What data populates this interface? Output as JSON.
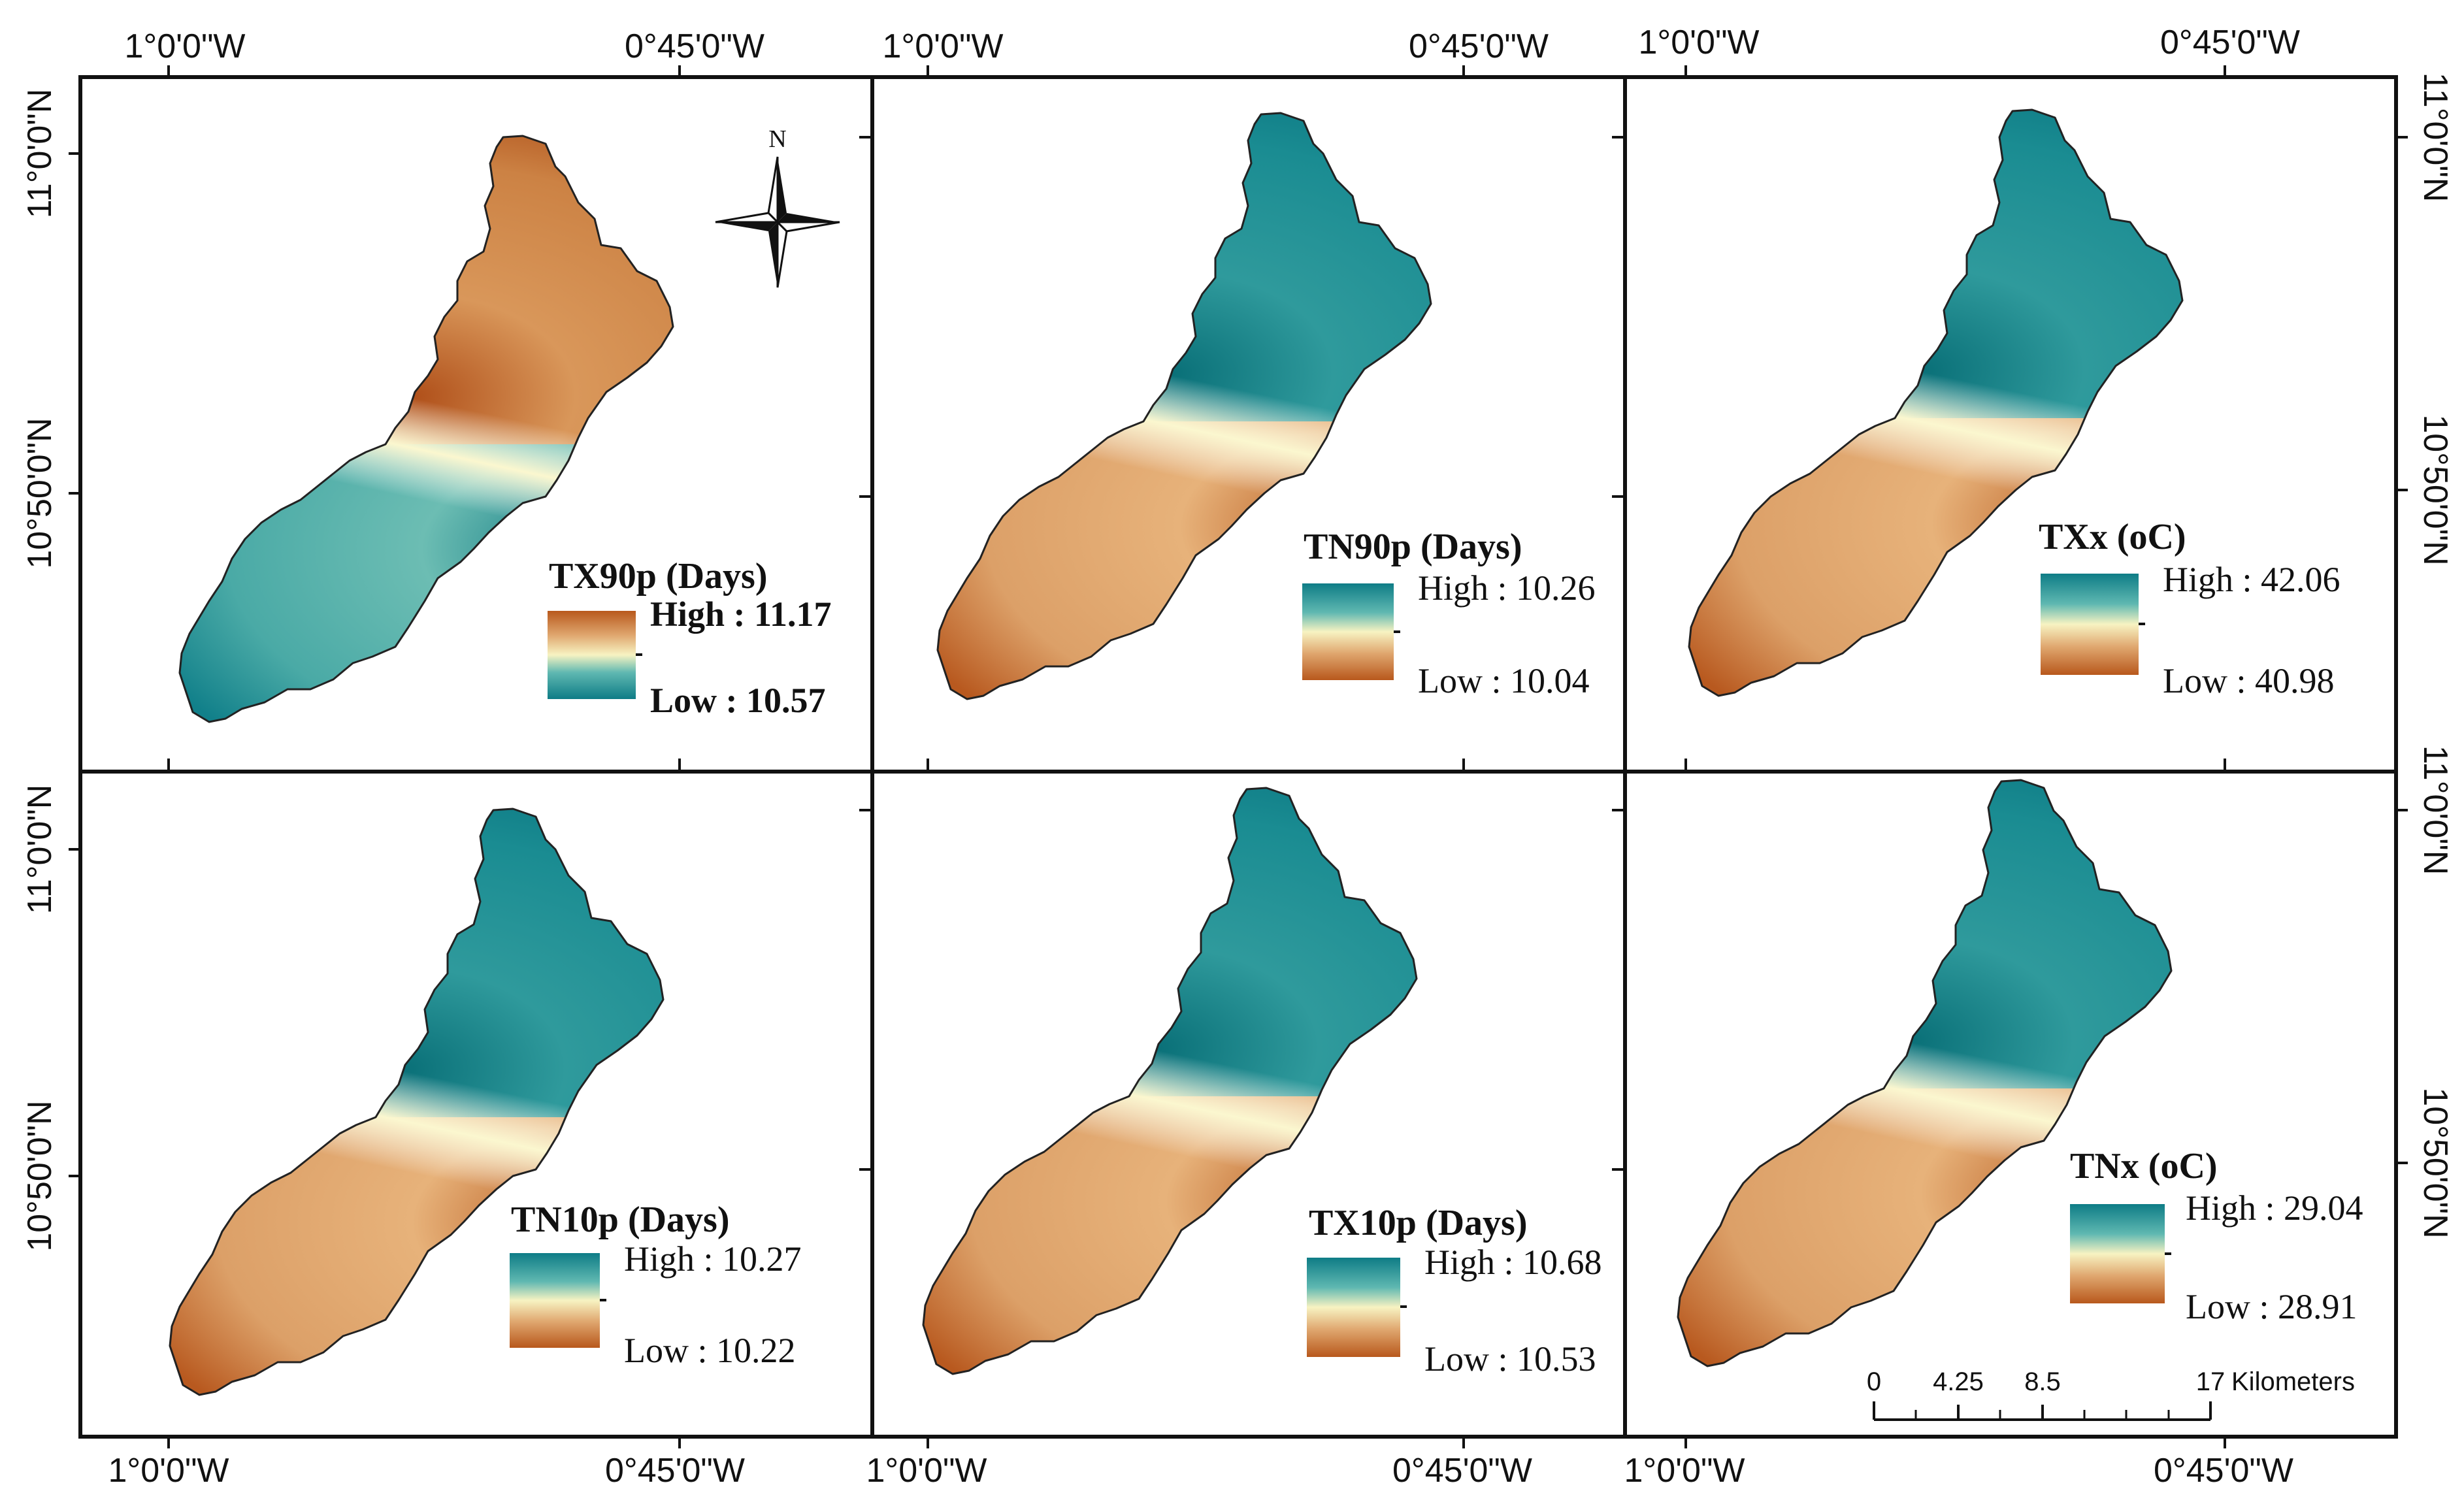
{
  "panels": [
    {
      "title": "TX90p (Days)",
      "high": "High : 11.17",
      "low": "Low : 10.57",
      "pattern": "inverted"
    },
    {
      "title": "TN90p (Days)",
      "high": "High : 10.26",
      "low": "Low : 10.04",
      "pattern": "normal"
    },
    {
      "title": "TXx (oC)",
      "high": "High : 42.06",
      "low": "Low : 40.98",
      "pattern": "normal"
    },
    {
      "title": "TN10p (Days)",
      "high": "High : 10.27",
      "low": "Low : 10.22",
      "pattern": "normal"
    },
    {
      "title": "TX10p (Days)",
      "high": "High : 10.68",
      "low": "Low : 10.53",
      "pattern": "normal"
    },
    {
      "title": "TNx (oC)",
      "high": "High : 29.04",
      "low": "Low : 28.91",
      "pattern": "normal"
    }
  ],
  "longitude_labels": {
    "west": "1°0'0\"W",
    "east": "0°45'0\"W"
  },
  "latitude_labels": {
    "north": "11°0'0\"N",
    "south": "10°50'0\"N"
  },
  "north_arrow": {
    "label": "N"
  },
  "scale_bar": {
    "ticks": [
      "0",
      "4.25",
      "8.5",
      "17"
    ],
    "unit": "Kilometers"
  },
  "colors": {
    "high": "#0e7c86",
    "mid_high": "#5fb8b1",
    "mid": "#f7f3c2",
    "mid_low": "#e0a870",
    "low": "#b8581c"
  }
}
